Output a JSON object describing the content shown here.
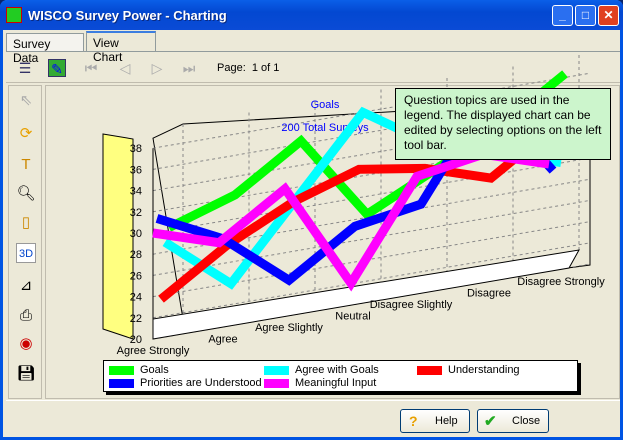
{
  "window": {
    "title": "WISCO Survey Power - Charting",
    "minimize": "_",
    "maximize": "□",
    "close": "✕"
  },
  "tabs": [
    {
      "label": "Survey Data",
      "active": false
    },
    {
      "label": "View Chart",
      "active": true
    }
  ],
  "toolbar": {
    "page_label": "Page:",
    "page_value": "1 of 1",
    "icons": [
      "list-icon",
      "edit-chart-icon",
      "first-page-icon",
      "prev-page-icon",
      "next-page-icon",
      "last-page-icon"
    ]
  },
  "left_toolbar": {
    "icons": [
      "pointer-icon",
      "rotate-icon",
      "text-icon",
      "zoom-icon",
      "page-icon",
      "3d-icon",
      "axis-icon",
      "print-icon",
      "color-icon",
      "save-icon"
    ],
    "threed_label": "3D"
  },
  "tooltip": "Question topics are used in the legend. The displayed chart can be edited by selecting options on the left tool bar.",
  "chart_data": {
    "type": "line",
    "title": "Goals",
    "subtitle": "200 Total Surveys",
    "three_d": true,
    "categories": [
      "Agree Strongly",
      "Agree",
      "Agree Slightly",
      "Neutral",
      "Disagree Slightly",
      "Disagree",
      "Disagree Strongly"
    ],
    "ylim": [
      20,
      38
    ],
    "yticks": [
      "20",
      "22",
      "24",
      "26",
      "28",
      "30",
      "32",
      "34",
      "36",
      "38"
    ],
    "grid": true,
    "legend_position": "bottom",
    "series": [
      {
        "name": "Goals",
        "color": "#00ff00",
        "values": [
          29,
          31,
          35,
          27,
          30,
          33,
          37
        ]
      },
      {
        "name": "Agree with Goals",
        "color": "#00ffff",
        "values": [
          28,
          23,
          30,
          37,
          33,
          31,
          29
        ]
      },
      {
        "name": "Understanding",
        "color": "#ff0000",
        "values": [
          23,
          27,
          30,
          32,
          31,
          29,
          33
        ]
      },
      {
        "name": "Priorities are Understood",
        "color": "#0000ff",
        "values": [
          31,
          28,
          23,
          27,
          28,
          37,
          29
        ]
      },
      {
        "name": "Meaningful Input",
        "color": "#ff00ff",
        "values": [
          30,
          28,
          32,
          22,
          31,
          32,
          30
        ]
      }
    ]
  },
  "buttons": {
    "help": "Help",
    "close": "Close"
  }
}
